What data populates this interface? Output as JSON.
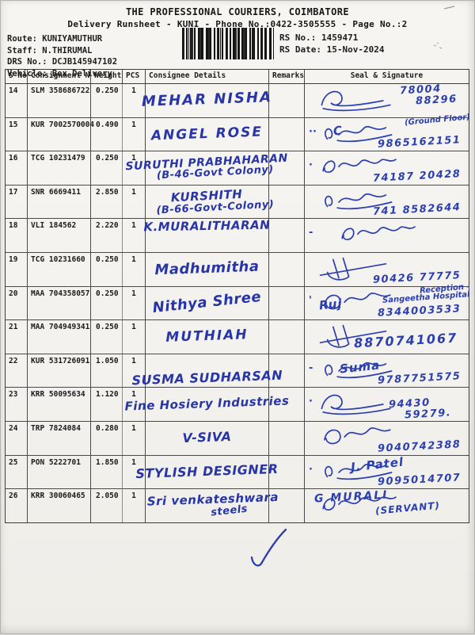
{
  "header": {
    "company": "THE PROFESSIONAL COURIERS, COIMBATORE",
    "subtitle": "Delivery Runsheet - KUNI - Phone No.:0422-3505555 - Page No.:2"
  },
  "meta": {
    "left": [
      {
        "label": "Route:",
        "value": "KUNIYAMUTHUR"
      },
      {
        "label": "Staff:",
        "value": "N.THIRUMAL"
      },
      {
        "label": "DRS No.:",
        "value": "DCJB145947102"
      },
      {
        "label": "Vehicle:",
        "value": "Box Delivery"
      }
    ],
    "right": [
      {
        "label": "RS No.:",
        "value": "1459471"
      },
      {
        "label": "RS Date:",
        "value": "15-Nov-2024"
      }
    ]
  },
  "table": {
    "columns": [
      "S No",
      "Consignment No",
      "Weight",
      "PCS",
      "Consignee Details",
      "Remarks",
      "Seal & Signature"
    ],
    "rows": [
      {
        "sno": "14",
        "consignment": "SLM 358686722",
        "weight": "0.250",
        "pcs": "1",
        "consignee": "MEHAR NISHA",
        "remarks": "",
        "sig": {
          "style": 0,
          "phone": "78004",
          "phone2": "88296"
        }
      },
      {
        "sno": "15",
        "consignment": "KUR 7002570004",
        "weight": "0.490",
        "pcs": "1",
        "consignee": "ANGEL ROSE",
        "remarks": "",
        "sig": {
          "style": 1,
          "name": "C",
          "note": "(Ground Floor)",
          "phone": "9865162151",
          "mark": "··"
        }
      },
      {
        "sno": "16",
        "consignment": "TCG 10231479",
        "weight": "0.250",
        "pcs": "1",
        "consignee": "SURUTHI PRABHAHARAN",
        "consignee2": "(B-46-Govt Colony)",
        "remarks": "",
        "sig": {
          "style": 2,
          "phone": "74187 20428",
          "mark": "·"
        }
      },
      {
        "sno": "17",
        "consignment": "SNR 6669411",
        "weight": "2.850",
        "pcs": "1",
        "consignee": "KURSHITH",
        "consignee2": "(B-66-Govt-Colony)",
        "remarks": "",
        "sig": {
          "style": 1,
          "phone": "741 8582644"
        }
      },
      {
        "sno": "18",
        "consignment": "VLI 184562",
        "weight": "2.220",
        "pcs": "1",
        "consignee": "K.MURALITHARAN",
        "remarks": "",
        "sig": {
          "style": 2,
          "mark": "-"
        }
      },
      {
        "sno": "19",
        "consignment": "TCG 10231660",
        "weight": "0.250",
        "pcs": "1",
        "consignee": "Madhumitha",
        "remarks": "",
        "sig": {
          "style": 3,
          "phone": "90426 77775"
        }
      },
      {
        "sno": "20",
        "consignment": "MAA 704358057",
        "weight": "0.250",
        "pcs": "1",
        "consignee": "Nithya Shree",
        "remarks": "",
        "sig": {
          "style": 4,
          "name": "Ruj",
          "note": "Reception -",
          "note2": "Sangeetha Hospital",
          "phone": "8344003533",
          "mark": "'"
        }
      },
      {
        "sno": "21",
        "consignment": "MAA 704949341",
        "weight": "0.250",
        "pcs": "1",
        "consignee": "MUTHIAH",
        "remarks": "",
        "sig": {
          "style": 3,
          "phone": "8870741067"
        }
      },
      {
        "sno": "22",
        "consignment": "KUR 531726091",
        "weight": "1.050",
        "pcs": "1",
        "consignee": "SUSMA SUDHARSAN",
        "remarks": "",
        "sig": {
          "style": 1,
          "name": "Suma",
          "phone": "9787751575",
          "mark": "-"
        }
      },
      {
        "sno": "23",
        "consignment": "KRR 50095634",
        "weight": "1.120",
        "pcs": "1",
        "consignee": "Fine Hosiery Industries",
        "remarks": "",
        "sig": {
          "style": 0,
          "phone": "94430",
          "phone2": "59279.",
          "mark": "·"
        }
      },
      {
        "sno": "24",
        "consignment": "TRP 7824084",
        "weight": "0.280",
        "pcs": "1",
        "consignee": "V-SIVA",
        "remarks": "",
        "sig": {
          "style": 4,
          "phone": "9040742388"
        }
      },
      {
        "sno": "25",
        "consignment": "PON 5222701",
        "weight": "1.850",
        "pcs": "1",
        "consignee": "STYLISH DESIGNER",
        "remarks": "",
        "sig": {
          "style": 1,
          "name": "J. Patel",
          "phone": "9095014707",
          "mark": "·"
        }
      },
      {
        "sno": "26",
        "consignment": "KRR 30060465",
        "weight": "2.050",
        "pcs": "1",
        "consignee": "Sri venkateshwara",
        "consignee2": "steels",
        "remarks": "",
        "sig": {
          "style": 2,
          "name": "G MURALI",
          "note": "(SERVANT)"
        }
      }
    ]
  },
  "annotations": {
    "checkmark": "✓"
  },
  "colors": {
    "ink_blue": "#2b3fae",
    "print_black": "#1b1b1b",
    "paper": "#f5f3ef"
  }
}
